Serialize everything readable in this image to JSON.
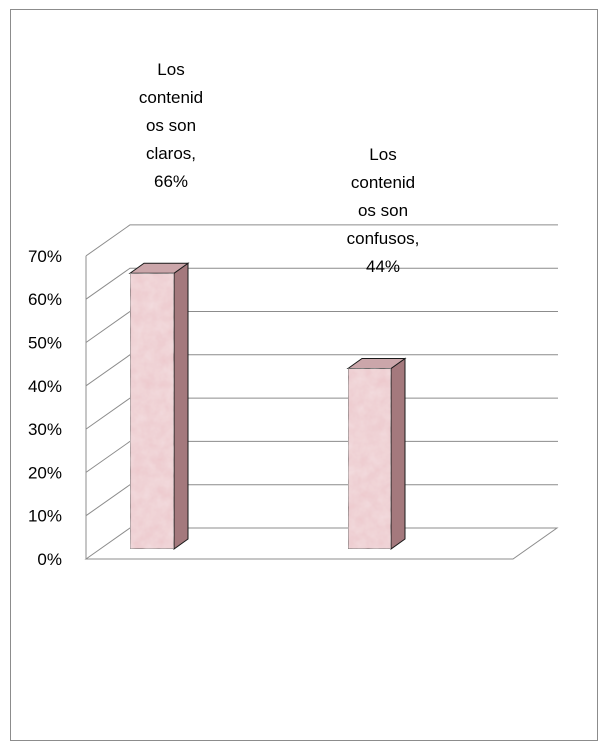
{
  "chart_data": {
    "type": "bar",
    "three_d": true,
    "categories": [
      "Los contenidos son claros",
      "Los contenidos son confusos"
    ],
    "values": [
      66,
      44
    ],
    "data_labels": [
      [
        "Los",
        "contenid",
        "os son",
        "claros,",
        "66%"
      ],
      [
        "Los",
        "contenid",
        "os son",
        "confusos,",
        "44%"
      ]
    ],
    "y_ticks": [
      "0%",
      "10%",
      "20%",
      "30%",
      "40%",
      "50%",
      "60%",
      "70%"
    ],
    "ylim": [
      0,
      70
    ],
    "grid": true,
    "legend": "none",
    "colors": {
      "bar_front": "#ecc7cb",
      "bar_side": "#a4797d",
      "bar_top": "#cba6aa",
      "bar_edge": "#1a1a1a",
      "grid": "#8c8c8c",
      "text": "#000000"
    }
  }
}
